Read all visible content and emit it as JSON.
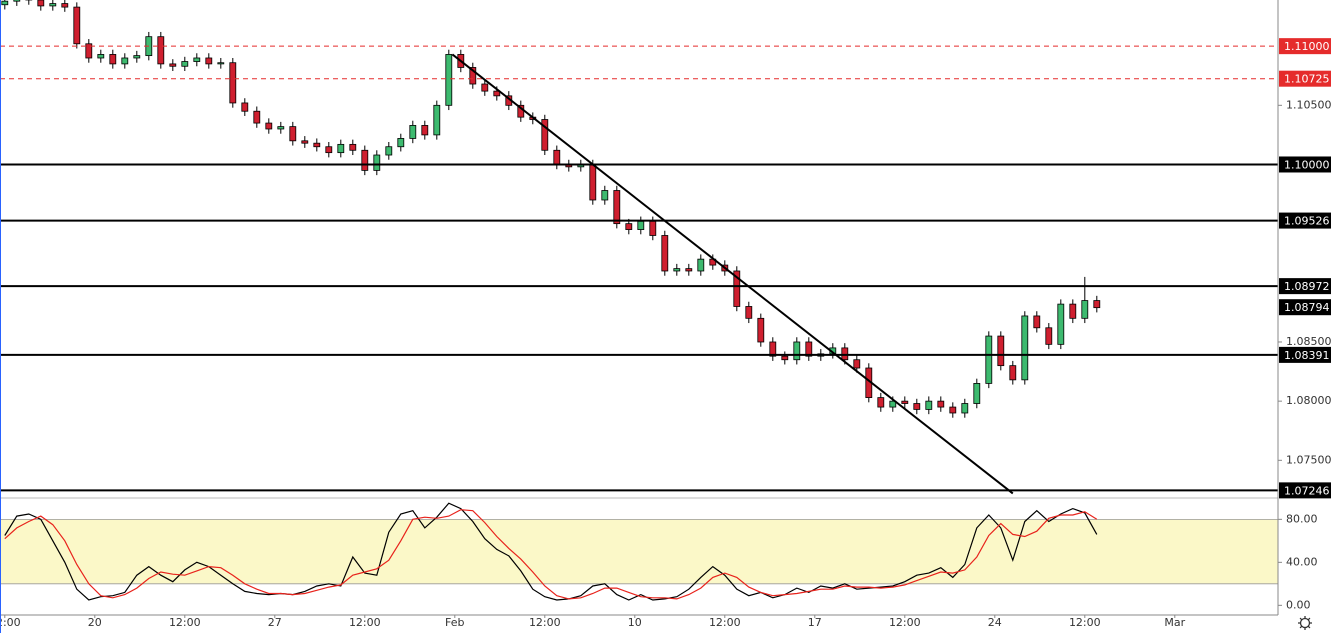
{
  "chart_data": [
    {
      "type": "candlestick",
      "up_color": "#3dba6f",
      "down_color": "#cf1f2f",
      "border_color": "#000000",
      "xlim": [
        -0.4,
        106.1
      ],
      "ylim": [
        1.0719,
        1.1139
      ],
      "open": [
        1.1135,
        1.1138,
        1.114,
        1.1139,
        1.1134,
        1.1136,
        1.1133,
        1.1102,
        1.109,
        1.1093,
        1.1085,
        1.109,
        1.1092,
        1.1108,
        1.1085,
        1.1083,
        1.1087,
        1.109,
        1.1085,
        1.1086,
        1.1052,
        1.1045,
        1.1035,
        1.103,
        1.1032,
        1.102,
        1.1018,
        1.1015,
        1.101,
        1.1017,
        1.1012,
        1.0995,
        1.1008,
        1.1015,
        1.1022,
        1.1033,
        1.1025,
        1.105,
        1.1093,
        1.1082,
        1.1068,
        1.1062,
        1.1058,
        1.105,
        1.104,
        1.1038,
        1.1012,
        1.1,
        1.0998,
        1.1,
        1.097,
        1.0978,
        1.095,
        1.0945,
        1.0952,
        1.094,
        1.091,
        1.0912,
        1.091,
        1.092,
        1.0915,
        1.091,
        1.088,
        1.087,
        1.085,
        1.0838,
        1.0835,
        1.085,
        1.0838,
        1.084,
        1.0845,
        1.0835,
        1.0828,
        1.0803,
        1.0795,
        1.08,
        1.0798,
        1.0793,
        1.08,
        1.0795,
        1.079,
        1.0798,
        1.0815,
        1.0855,
        1.083,
        1.0818,
        1.0872,
        1.0862,
        1.0848,
        1.0882,
        1.087,
        1.0885
      ],
      "high": [
        1.1142,
        1.1144,
        1.1144,
        1.1143,
        1.114,
        1.114,
        1.1137,
        1.1106,
        1.1097,
        1.1097,
        1.1094,
        1.1096,
        1.1112,
        1.1112,
        1.1089,
        1.1091,
        1.1094,
        1.1094,
        1.109,
        1.109,
        1.1056,
        1.1049,
        1.1039,
        1.1036,
        1.1036,
        1.1024,
        1.1022,
        1.1019,
        1.1021,
        1.1021,
        1.1016,
        1.1012,
        1.1019,
        1.1026,
        1.1037,
        1.1037,
        1.1054,
        1.1097,
        1.1097,
        1.1086,
        1.1072,
        1.1066,
        1.1062,
        1.1054,
        1.1044,
        1.1042,
        1.1016,
        1.1004,
        1.1004,
        1.1004,
        1.0982,
        1.0982,
        1.0954,
        1.0956,
        1.0956,
        1.0944,
        1.0916,
        1.0916,
        1.0924,
        1.0924,
        1.0919,
        1.0914,
        1.0884,
        1.0874,
        1.0854,
        1.0842,
        1.0854,
        1.0854,
        1.0844,
        1.0849,
        1.0849,
        1.0839,
        1.0832,
        1.0807,
        1.0804,
        1.0804,
        1.0802,
        1.0804,
        1.0804,
        1.0799,
        1.0802,
        1.0819,
        1.0859,
        1.0859,
        1.0834,
        1.0876,
        1.0876,
        1.0866,
        1.0886,
        1.0886,
        1.0905,
        1.0889
      ],
      "low": [
        1.1131,
        1.1134,
        1.1135,
        1.113,
        1.113,
        1.1129,
        1.1098,
        1.1086,
        1.1086,
        1.1081,
        1.1081,
        1.1086,
        1.1088,
        1.1081,
        1.1079,
        1.1079,
        1.1083,
        1.1081,
        1.1081,
        1.1048,
        1.1041,
        1.1031,
        1.1026,
        1.1026,
        1.1016,
        1.1014,
        1.1011,
        1.1006,
        1.1006,
        1.1008,
        1.0991,
        1.0991,
        1.1004,
        1.1011,
        1.1018,
        1.1021,
        1.1021,
        1.1046,
        1.1078,
        1.1064,
        1.1058,
        1.1054,
        1.1046,
        1.1036,
        1.1034,
        1.1008,
        1.0996,
        1.0994,
        1.0994,
        1.0966,
        1.0966,
        1.0946,
        1.0941,
        1.0941,
        1.0936,
        1.0906,
        1.0906,
        1.0906,
        1.0906,
        1.0911,
        1.0906,
        1.0876,
        1.0866,
        1.0846,
        1.0834,
        1.0831,
        1.0831,
        1.0834,
        1.0834,
        1.0836,
        1.0831,
        1.0824,
        1.0799,
        1.0791,
        1.0791,
        1.0794,
        1.0789,
        1.0789,
        1.0791,
        1.0786,
        1.0786,
        1.0794,
        1.0811,
        1.0826,
        1.0814,
        1.0814,
        1.0858,
        1.0844,
        1.0844,
        1.0866,
        1.0866,
        1.0875
      ],
      "close": [
        1.1138,
        1.114,
        1.1139,
        1.1134,
        1.1136,
        1.1133,
        1.1102,
        1.109,
        1.1093,
        1.1085,
        1.109,
        1.1092,
        1.1108,
        1.1085,
        1.1083,
        1.1087,
        1.109,
        1.1085,
        1.1086,
        1.1052,
        1.1045,
        1.1035,
        1.103,
        1.1032,
        1.102,
        1.1018,
        1.1015,
        1.101,
        1.1017,
        1.1012,
        1.0995,
        1.1008,
        1.1015,
        1.1022,
        1.1033,
        1.1025,
        1.105,
        1.1093,
        1.1082,
        1.1068,
        1.1062,
        1.1058,
        1.105,
        1.104,
        1.1038,
        1.1012,
        1.1,
        1.0998,
        1.1,
        1.097,
        1.0978,
        1.095,
        1.0945,
        1.0952,
        1.094,
        1.091,
        1.0912,
        1.091,
        1.092,
        1.0915,
        1.091,
        1.088,
        1.087,
        1.085,
        1.0838,
        1.0835,
        1.085,
        1.0838,
        1.084,
        1.0845,
        1.0835,
        1.0828,
        1.0803,
        1.0795,
        1.08,
        1.0798,
        1.0793,
        1.08,
        1.0795,
        1.079,
        1.0798,
        1.0815,
        1.0855,
        1.083,
        1.0818,
        1.0872,
        1.0862,
        1.0848,
        1.0882,
        1.087,
        1.0885,
        1.0879
      ],
      "yticks": [
        {
          "value": 1.105,
          "label": "1.10500"
        },
        {
          "value": 1.085,
          "label": "1.08500"
        },
        {
          "value": 1.08,
          "label": "1.08000"
        },
        {
          "value": 1.075,
          "label": "1.07500"
        }
      ],
      "levels": [
        {
          "value": 1.11,
          "label": "1.11000",
          "color": "#e52b2b",
          "style": "dashed"
        },
        {
          "value": 1.10725,
          "label": "1.10725",
          "color": "#e52b2b",
          "style": "dashed"
        },
        {
          "value": 1.1,
          "label": "1.10000",
          "color": "#000000",
          "style": "solid"
        },
        {
          "value": 1.09526,
          "label": "1.09526",
          "color": "#000000",
          "style": "solid"
        },
        {
          "value": 1.08972,
          "label": "1.08972",
          "color": "#000000",
          "style": "solid"
        },
        {
          "value": 1.08391,
          "label": "1.08391",
          "color": "#000000",
          "style": "solid"
        },
        {
          "value": 1.07246,
          "label": "1.07246",
          "color": "#000000",
          "style": "solid"
        }
      ],
      "last_price": {
        "value": 1.08794,
        "label": "1.08794"
      },
      "trendline": {
        "x": [
          37.3,
          84
        ],
        "y": [
          1.1093,
          1.0722
        ]
      }
    },
    {
      "type": "line",
      "xlim": [
        -0.4,
        106.1
      ],
      "ylim": [
        -9,
        98
      ],
      "band": [
        20,
        80
      ],
      "band_color": "#fbf8c8",
      "yticks": [
        {
          "value": 0,
          "label": "0.00"
        },
        {
          "value": 40,
          "label": "40.00"
        },
        {
          "value": 80,
          "label": "80.00"
        }
      ],
      "xticks": [
        {
          "value": 0,
          "label": "12:00"
        },
        {
          "value": 7.5,
          "label": "20"
        },
        {
          "value": 15,
          "label": "12:00"
        },
        {
          "value": 22.5,
          "label": "27"
        },
        {
          "value": 30,
          "label": "12:00"
        },
        {
          "value": 37.5,
          "label": "Feb"
        },
        {
          "value": 45,
          "label": "12:00"
        },
        {
          "value": 52.5,
          "label": "10"
        },
        {
          "value": 60,
          "label": "12:00"
        },
        {
          "value": 67.5,
          "label": "17"
        },
        {
          "value": 75,
          "label": "12:00"
        },
        {
          "value": 82.5,
          "label": "24"
        },
        {
          "value": 90,
          "label": "12:00"
        },
        {
          "value": 97.5,
          "label": "Mar"
        }
      ],
      "series": [
        {
          "color": "#000000",
          "values": [
            65,
            83,
            85,
            80,
            60,
            40,
            15,
            5,
            8,
            9,
            12,
            28,
            36,
            28,
            22,
            33,
            40,
            36,
            28,
            20,
            13,
            11,
            10,
            11,
            10,
            13,
            18,
            20,
            18,
            45,
            30,
            28,
            68,
            85,
            88,
            72,
            82,
            95,
            90,
            78,
            62,
            52,
            46,
            32,
            15,
            8,
            5,
            6,
            9,
            18,
            20,
            10,
            5,
            10,
            5,
            6,
            8,
            15,
            26,
            36,
            28,
            15,
            9,
            12,
            7,
            10,
            16,
            12,
            18,
            16,
            20,
            15,
            16,
            17,
            18,
            22,
            28,
            30,
            35,
            26,
            38,
            72,
            84,
            72,
            42,
            78,
            88,
            78,
            85,
            90,
            86,
            66
          ]
        },
        {
          "color": "#e8231c",
          "values": [
            62,
            72,
            78,
            83,
            75,
            60,
            38,
            20,
            9,
            7,
            10,
            16,
            25,
            31,
            29,
            28,
            32,
            36,
            35,
            28,
            20,
            15,
            11,
            11,
            10,
            11,
            14,
            17,
            19,
            28,
            31,
            34,
            42,
            60,
            80,
            82,
            81,
            83,
            89,
            88,
            77,
            64,
            53,
            43,
            31,
            18,
            9,
            6,
            7,
            11,
            16,
            16,
            12,
            8,
            7,
            7,
            6,
            10,
            16,
            26,
            30,
            26,
            17,
            12,
            9,
            10,
            11,
            13,
            15,
            15,
            18,
            17,
            17,
            16,
            17,
            19,
            23,
            27,
            31,
            30,
            33,
            45,
            65,
            76,
            66,
            64,
            69,
            81,
            84,
            84,
            87,
            80
          ]
        }
      ]
    }
  ]
}
